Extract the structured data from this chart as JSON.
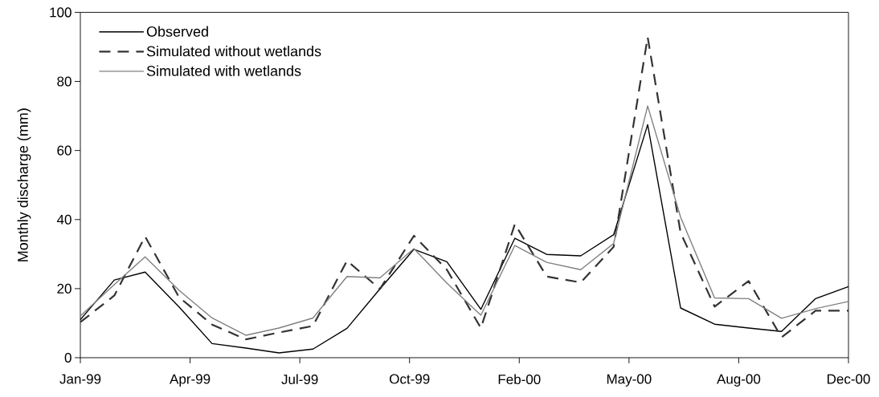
{
  "chart_data": {
    "type": "line",
    "ylabel": "Monthly discharge (mm)",
    "x": [
      "1999-01",
      "1999-02",
      "1999-03",
      "1999-04",
      "1999-05",
      "1999-06",
      "1999-07",
      "1999-08",
      "1999-09",
      "1999-10",
      "1999-11",
      "1999-12",
      "2000-01",
      "2000-02",
      "2000-03",
      "2000-04",
      "2000-05",
      "2000-06",
      "2000-07",
      "2000-08",
      "2000-09",
      "2000-10",
      "2000-11",
      "2000-12"
    ],
    "series": [
      {
        "name": "Observed",
        "color": "#000000",
        "line_style": "solid",
        "values": [
          11,
          22.5,
          24.8,
          14.7,
          4.1,
          2.8,
          1.4,
          2.5,
          8.5,
          19.9,
          31.4,
          27.8,
          14.0,
          34.6,
          29.9,
          29.5,
          35.6,
          67.5,
          14.4,
          9.7,
          8.6,
          7.6,
          17.1,
          20.6
        ]
      },
      {
        "name": "Simulated without wetlands",
        "color": "#333333",
        "line_style": "dashed",
        "values": [
          10.3,
          18,
          35.1,
          17.5,
          9.6,
          5.3,
          7.3,
          9.2,
          28.1,
          19.9,
          35.3,
          25.5,
          8.6,
          38.7,
          23.5,
          21.8,
          32.1,
          92.8,
          36.2,
          14.8,
          22.2,
          5.9,
          13.6,
          13.6
        ]
      },
      {
        "name": "Simulated with wetlands",
        "color": "#808080",
        "line_style": "solid",
        "values": [
          12.1,
          21.2,
          29.2,
          19.5,
          11.5,
          6.5,
          8.6,
          11.5,
          23.5,
          23.1,
          31.6,
          21.6,
          12.3,
          32.5,
          27.6,
          25.5,
          33.1,
          72.9,
          40.7,
          17.3,
          17.1,
          11.4,
          14.2,
          16.3
        ]
      }
    ],
    "xlim": [
      "1999-01-01",
      "2000-12-01"
    ],
    "xticks": [
      {
        "value": "1999-01-01",
        "label": "Jan-99"
      },
      {
        "value": "1999-04-11",
        "label": "Apr-99"
      },
      {
        "value": "1999-07-20",
        "label": "Jul-99"
      },
      {
        "value": "1999-10-28",
        "label": "Oct-99"
      },
      {
        "value": "2000-02-05",
        "label": "Feb-00"
      },
      {
        "value": "2000-05-15",
        "label": "May-00"
      },
      {
        "value": "2000-08-23",
        "label": "Aug-00"
      },
      {
        "value": "2000-12-01",
        "label": "Dec-00"
      }
    ],
    "ylim": [
      0,
      100
    ],
    "yticks": [
      0,
      20,
      40,
      60,
      80,
      100
    ],
    "grid": false,
    "legend": "top left",
    "marker": "none"
  }
}
